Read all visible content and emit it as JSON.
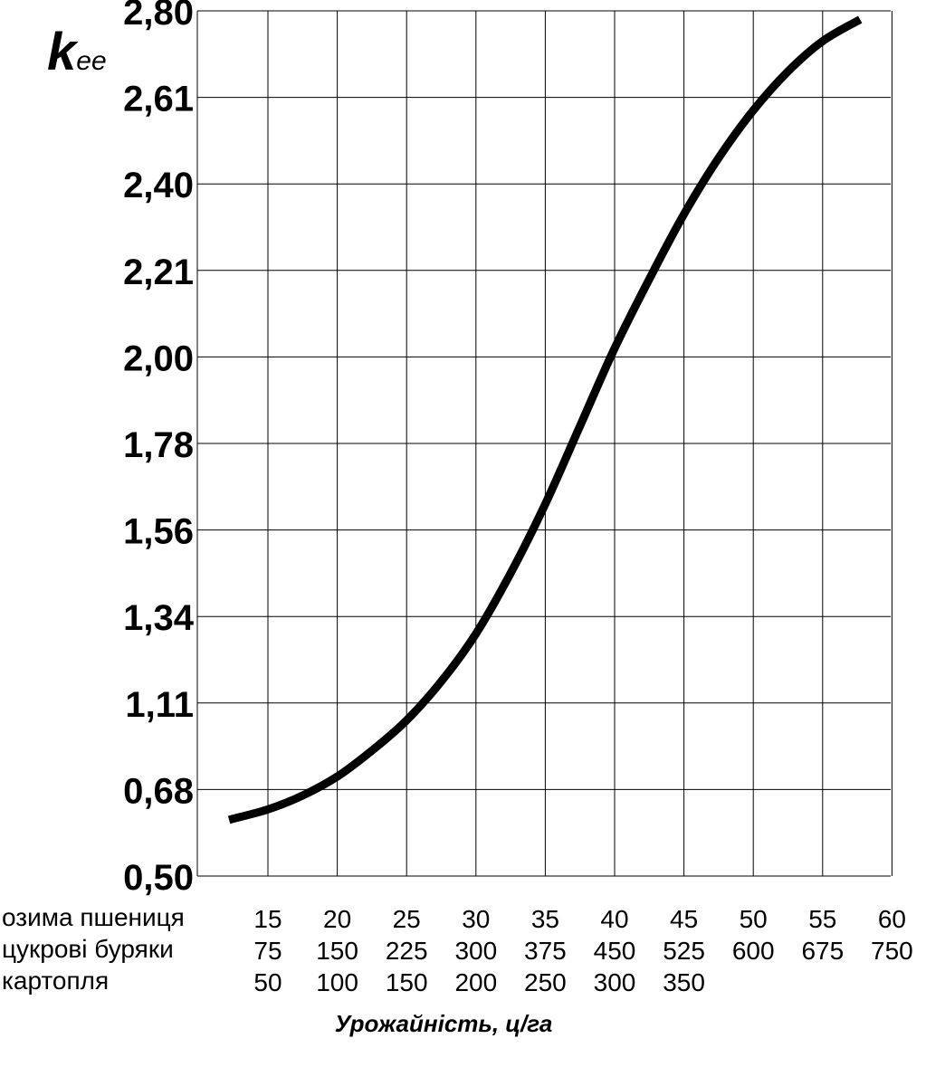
{
  "chart_data": {
    "type": "line",
    "title": "",
    "ylabel": {
      "main": "k",
      "sub": "ee"
    },
    "xlabel": "Урожайність, ц/га",
    "y_ticks": [
      "0,50",
      "0,68",
      "1,11",
      "1,34",
      "1,56",
      "1,78",
      "2,00",
      "2,21",
      "2,40",
      "2,61",
      "2,80"
    ],
    "grid": true,
    "x_rows": [
      {
        "label": "озима пшениця",
        "ticks": [
          "15",
          "20",
          "25",
          "30",
          "35",
          "40",
          "45",
          "50",
          "55",
          "60"
        ]
      },
      {
        "label": "цукрові буряки",
        "ticks": [
          "75",
          "150",
          "225",
          "300",
          "375",
          "450",
          "525",
          "600",
          "675",
          "750"
        ]
      },
      {
        "label": "картопля",
        "ticks": [
          "50",
          "100",
          "150",
          "200",
          "250",
          "300",
          "350"
        ]
      }
    ],
    "series": [
      {
        "x_unit": "озима пшениця, ц/га",
        "x": [
          12.2,
          15,
          17.5,
          20,
          22.5,
          25,
          27.5,
          30,
          32.5,
          35,
          37.5,
          40,
          42.5,
          45,
          47.5,
          50,
          52.5,
          55,
          57.7
        ],
        "y_grid_index": [
          0.65,
          0.77,
          0.93,
          1.15,
          1.45,
          1.8,
          2.25,
          2.8,
          3.5,
          4.3,
          5.2,
          6.1,
          6.9,
          7.65,
          8.3,
          8.85,
          9.3,
          9.65,
          9.9
        ]
      }
    ]
  }
}
